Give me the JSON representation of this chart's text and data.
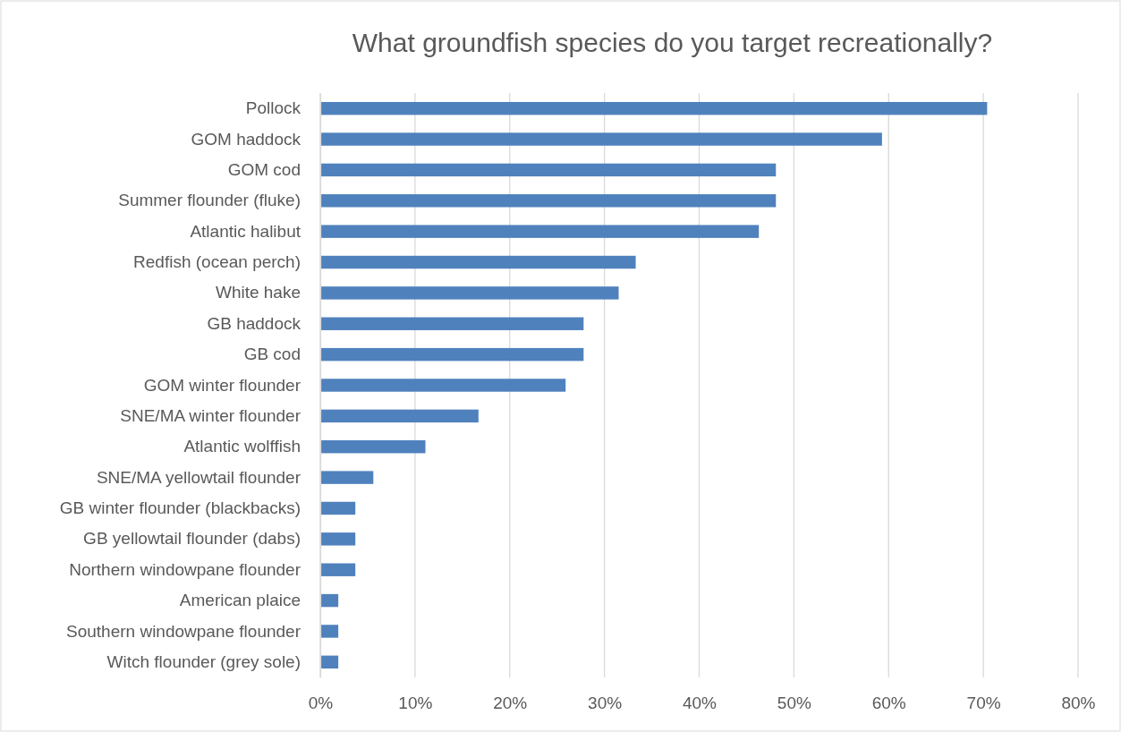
{
  "chart_data": {
    "type": "bar",
    "orientation": "horizontal",
    "title": "What groundfish species do you target recreationally?",
    "categories": [
      "Pollock",
      "GOM haddock",
      "GOM cod",
      "Summer flounder (fluke)",
      "Atlantic halibut",
      "Redfish (ocean perch)",
      "White hake",
      "GB haddock",
      "GB cod",
      "GOM winter flounder",
      "SNE/MA winter flounder",
      "Atlantic wolffish",
      "SNE/MA yellowtail flounder",
      "GB winter flounder (blackbacks)",
      "GB yellowtail flounder (dabs)",
      "Northern windowpane flounder",
      "American plaice",
      "Southern windowpane flounder",
      "Witch flounder (grey sole)"
    ],
    "values": [
      70.4,
      59.3,
      48.1,
      48.1,
      46.3,
      33.3,
      31.5,
      27.8,
      27.8,
      25.9,
      16.7,
      11.1,
      5.6,
      3.7,
      3.7,
      3.7,
      1.9,
      1.9,
      1.9
    ],
    "color": "#4f81bd",
    "xlim": [
      0,
      80
    ],
    "xticks": [
      {
        "value": 0,
        "label": "0%"
      },
      {
        "value": 10,
        "label": "10%"
      },
      {
        "value": 20,
        "label": "20%"
      },
      {
        "value": 30,
        "label": "30%"
      },
      {
        "value": 40,
        "label": "40%"
      },
      {
        "value": 50,
        "label": "50%"
      },
      {
        "value": 60,
        "label": "60%"
      },
      {
        "value": 70,
        "label": "70%"
      },
      {
        "value": 80,
        "label": "80%"
      }
    ],
    "grid": "x"
  }
}
